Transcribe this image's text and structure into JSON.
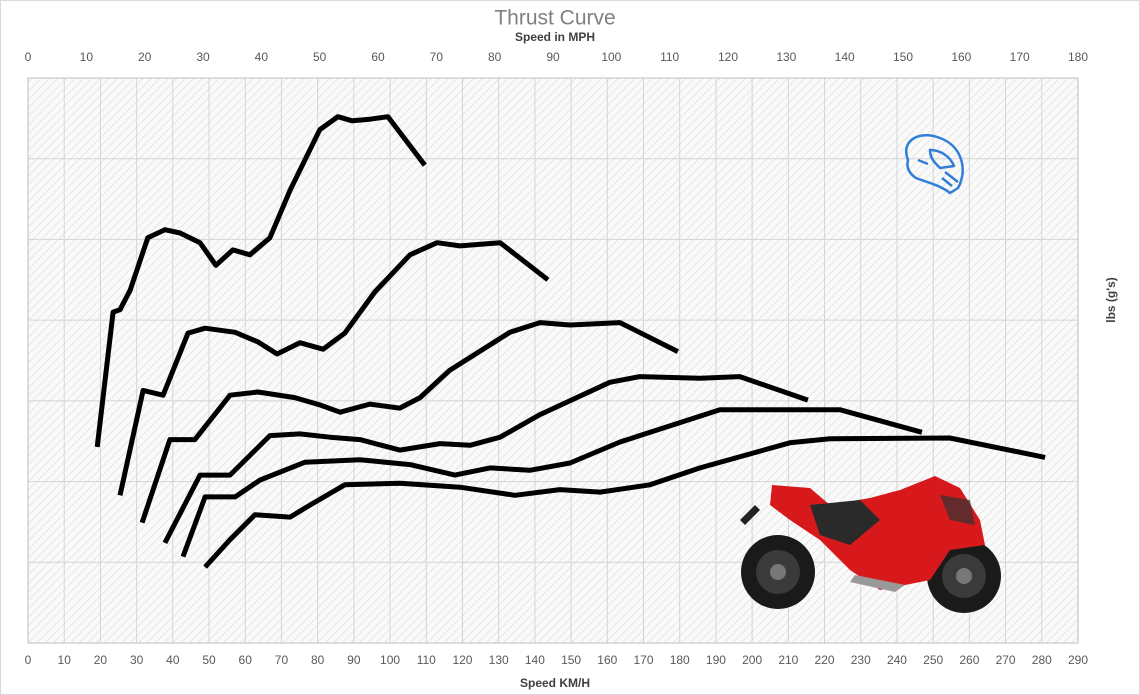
{
  "chart_data": {
    "type": "line",
    "title": "Thrust Curve",
    "xlabel": "Speed KM/H",
    "x2label": "Speed in MPH",
    "ylabel": "lbs (g's)",
    "xlim": [
      0,
      290
    ],
    "xticks": [
      0,
      10,
      20,
      30,
      40,
      50,
      60,
      70,
      80,
      90,
      100,
      110,
      120,
      130,
      140,
      150,
      160,
      170,
      180,
      190,
      200,
      210,
      220,
      230,
      240,
      250,
      260,
      270,
      280,
      290
    ],
    "x2lim": [
      0,
      180
    ],
    "x2ticks": [
      0,
      10,
      20,
      30,
      40,
      50,
      60,
      70,
      80,
      90,
      100,
      110,
      120,
      130,
      140,
      150,
      160,
      170,
      180
    ],
    "ylim": [
      0,
      7
    ],
    "yticks": [
      0,
      1,
      2,
      3,
      4,
      5,
      6,
      7
    ],
    "ytick_labels": false,
    "grid": true,
    "series": [
      {
        "color": "#000000",
        "x": [
          19.1,
          23.5,
          25.4,
          28.2,
          33.1,
          37.8,
          42.0,
          47.5,
          51.9,
          56.6,
          61.3,
          66.8,
          72.4,
          80.6,
          85.6,
          89.5,
          94.4,
          99.4,
          109.6
        ],
        "values": [
          2.43,
          4.1,
          4.13,
          4.37,
          5.02,
          5.12,
          5.08,
          4.96,
          4.68,
          4.87,
          4.81,
          5.02,
          5.61,
          6.36,
          6.52,
          6.47,
          6.49,
          6.52,
          5.92
        ]
      },
      {
        "color": "#000000",
        "x": [
          25.4,
          31.8,
          37.3,
          44.2,
          48.9,
          57.2,
          63.5,
          68.8,
          75.1,
          81.5,
          87.5,
          95.8,
          105.5,
          113.0,
          119.3,
          130.4,
          143.6
        ],
        "values": [
          1.83,
          3.13,
          3.07,
          3.84,
          3.9,
          3.85,
          3.73,
          3.58,
          3.72,
          3.64,
          3.84,
          4.35,
          4.81,
          4.96,
          4.92,
          4.96,
          4.5
        ]
      },
      {
        "color": "#000000",
        "x": [
          31.5,
          39.2,
          46.1,
          55.8,
          63.5,
          73.7,
          80.6,
          86.2,
          94.4,
          102.7,
          108.3,
          116.5,
          133.1,
          141.4,
          149.7,
          163.5,
          179.5
        ],
        "values": [
          1.49,
          2.52,
          2.52,
          3.07,
          3.11,
          3.04,
          2.95,
          2.86,
          2.96,
          2.91,
          3.04,
          3.38,
          3.85,
          3.97,
          3.94,
          3.97,
          3.61
        ]
      },
      {
        "color": "#000000",
        "x": [
          37.8,
          47.5,
          55.8,
          66.8,
          75.1,
          83.4,
          91.7,
          102.7,
          113.8,
          122.1,
          130.4,
          141.4,
          160.7,
          169.0,
          185.6,
          196.6,
          215.4
        ],
        "values": [
          1.24,
          2.08,
          2.08,
          2.57,
          2.59,
          2.55,
          2.52,
          2.39,
          2.47,
          2.45,
          2.55,
          2.83,
          3.23,
          3.3,
          3.28,
          3.3,
          3.01
        ]
      },
      {
        "color": "#000000",
        "x": [
          42.8,
          48.9,
          57.2,
          64.1,
          76.5,
          91.7,
          105.5,
          117.9,
          127.6,
          138.6,
          149.7,
          163.5,
          191.1,
          207.7,
          224.2,
          246.9
        ],
        "values": [
          1.07,
          1.81,
          1.81,
          2.02,
          2.24,
          2.27,
          2.21,
          2.08,
          2.17,
          2.14,
          2.23,
          2.49,
          2.89,
          2.89,
          2.89,
          2.61
        ]
      },
      {
        "color": "#000000",
        "x": [
          48.9,
          55.8,
          62.7,
          72.4,
          77.9,
          87.5,
          102.7,
          119.3,
          134.5,
          146.9,
          158.0,
          171.8,
          185.6,
          210.4,
          221.5,
          254.6,
          280.9
        ],
        "values": [
          0.94,
          1.28,
          1.59,
          1.56,
          1.71,
          1.96,
          1.98,
          1.93,
          1.83,
          1.9,
          1.87,
          1.96,
          2.17,
          2.48,
          2.53,
          2.54,
          2.3
        ]
      }
    ]
  }
}
